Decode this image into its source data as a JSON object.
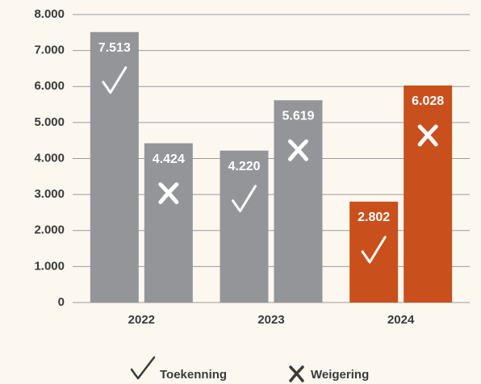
{
  "chart_data": {
    "type": "bar",
    "categories": [
      "2022",
      "2023",
      "2024"
    ],
    "series": [
      {
        "name": "Toekenning",
        "colors": [
          "#939598",
          "#939598",
          "#c9501c"
        ],
        "values": [
          7513,
          4220,
          2802
        ],
        "value_labels": [
          "7.513",
          "4.220",
          "2.802"
        ]
      },
      {
        "name": "Weigering",
        "colors": [
          "#939598",
          "#939598",
          "#c9501c"
        ],
        "values": [
          4424,
          5619,
          6028
        ],
        "value_labels": [
          "4.424",
          "5.619",
          "6.028"
        ]
      }
    ],
    "ylim": [
      0,
      8000
    ],
    "yticks": [
      0,
      {
        "value": 1000,
        "label": "1.000"
      },
      {
        "value": 2000,
        "label": "2.000"
      },
      {
        "value": 3000,
        "label": "3.000"
      },
      {
        "value": 4000,
        "label": "4.000"
      },
      {
        "value": 5000,
        "label": "5.000"
      },
      {
        "value": 6000,
        "label": "6.000"
      },
      {
        "value": 7000,
        "label": "7.000"
      },
      {
        "value": 8000,
        "label": "8.000"
      }
    ],
    "grid": true
  }
}
